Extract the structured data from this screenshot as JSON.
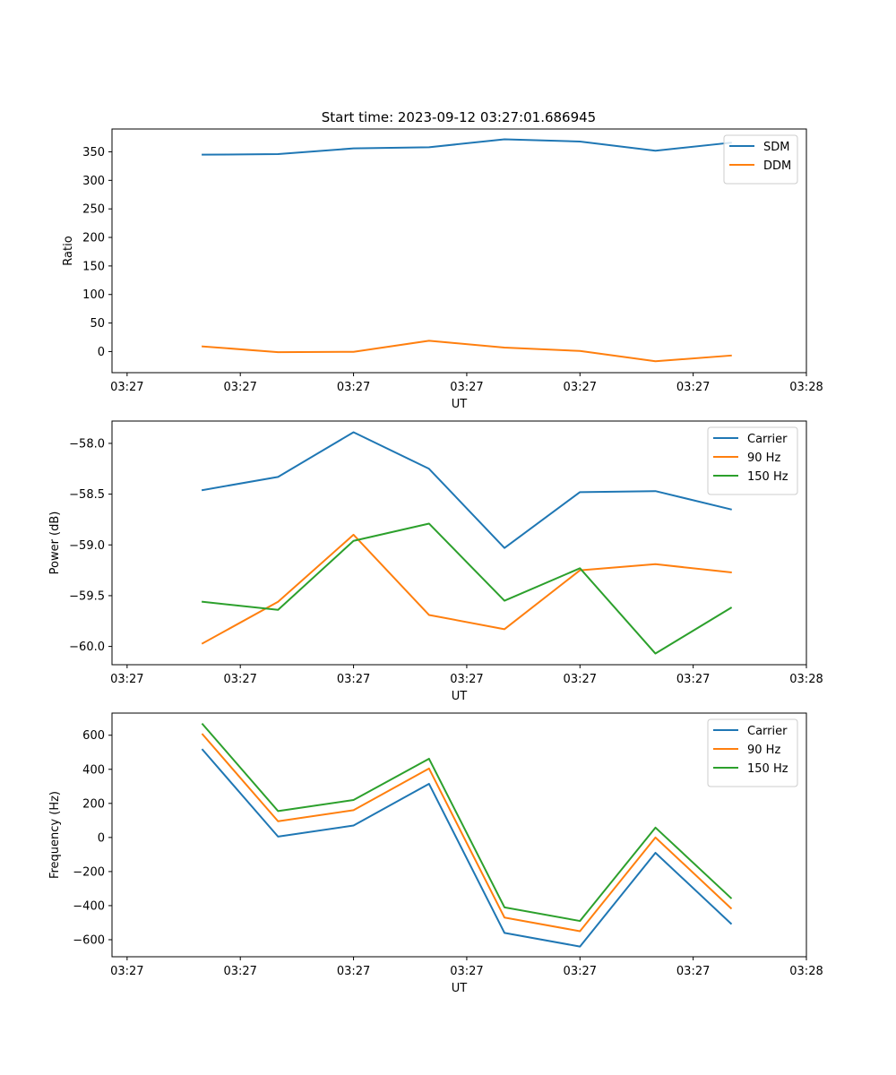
{
  "figure_title": "Start time: 2023-09-12 03:27:01.686945",
  "colors": {
    "blue": "#1f77b4",
    "orange": "#ff7f0e",
    "green": "#2ca02c"
  },
  "chart_data": [
    {
      "type": "line",
      "title": "Start time: 2023-09-12 03:27:01.686945",
      "xlabel": "UT",
      "ylabel": "Ratio",
      "x": [
        1,
        2,
        3,
        4,
        5,
        6,
        7,
        8
      ],
      "xlim": [
        -0.2,
        9.0
      ],
      "ylim": [
        -37,
        390
      ],
      "xticks": [
        {
          "v": 0,
          "label": "03:27"
        },
        {
          "v": 1.5,
          "label": "03:27"
        },
        {
          "v": 3,
          "label": "03:27"
        },
        {
          "v": 4.5,
          "label": "03:27"
        },
        {
          "v": 6,
          "label": "03:27"
        },
        {
          "v": 7.5,
          "label": "03:27"
        },
        {
          "v": 9,
          "label": "03:28"
        }
      ],
      "yticks": [
        {
          "v": 0,
          "label": "0"
        },
        {
          "v": 50,
          "label": "50"
        },
        {
          "v": 100,
          "label": "100"
        },
        {
          "v": 150,
          "label": "150"
        },
        {
          "v": 200,
          "label": "200"
        },
        {
          "v": 250,
          "label": "250"
        },
        {
          "v": 300,
          "label": "300"
        },
        {
          "v": 350,
          "label": "350"
        }
      ],
      "legend": "top-right",
      "series": [
        {
          "name": "SDM",
          "color": "#1f77b4",
          "values": [
            345,
            346,
            356,
            358,
            372,
            368,
            352,
            366
          ]
        },
        {
          "name": "DDM",
          "color": "#ff7f0e",
          "values": [
            9,
            -1,
            -0.5,
            19,
            7,
            1,
            -17,
            -7
          ]
        }
      ]
    },
    {
      "type": "line",
      "title": "",
      "xlabel": "UT",
      "ylabel": "Power (dB)",
      "x": [
        1,
        2,
        3,
        4,
        5,
        6,
        7,
        8
      ],
      "xlim": [
        -0.2,
        9.0
      ],
      "ylim": [
        -60.18,
        -57.78
      ],
      "xticks": [
        {
          "v": 0,
          "label": "03:27"
        },
        {
          "v": 1.5,
          "label": "03:27"
        },
        {
          "v": 3,
          "label": "03:27"
        },
        {
          "v": 4.5,
          "label": "03:27"
        },
        {
          "v": 6,
          "label": "03:27"
        },
        {
          "v": 7.5,
          "label": "03:27"
        },
        {
          "v": 9,
          "label": "03:28"
        }
      ],
      "yticks": [
        {
          "v": -60.0,
          "label": "−60.0"
        },
        {
          "v": -59.5,
          "label": "−59.5"
        },
        {
          "v": -59.0,
          "label": "−59.0"
        },
        {
          "v": -58.5,
          "label": "−58.5"
        },
        {
          "v": -58.0,
          "label": "−58.0"
        }
      ],
      "legend": "top-right",
      "series": [
        {
          "name": "Carrier",
          "color": "#1f77b4",
          "values": [
            -58.46,
            -58.33,
            -57.89,
            -58.25,
            -59.03,
            -58.48,
            -58.47,
            -58.65
          ]
        },
        {
          "name": "90 Hz",
          "color": "#ff7f0e",
          "values": [
            -59.97,
            -59.56,
            -58.9,
            -59.69,
            -59.83,
            -59.25,
            -59.19,
            -59.27
          ]
        },
        {
          "name": "150 Hz",
          "color": "#2ca02c",
          "values": [
            -59.56,
            -59.64,
            -58.96,
            -58.79,
            -59.55,
            -59.23,
            -60.07,
            -59.62
          ]
        }
      ]
    },
    {
      "type": "line",
      "title": "",
      "xlabel": "UT",
      "ylabel": "Frequency (Hz)",
      "x": [
        1,
        2,
        3,
        4,
        5,
        6,
        7,
        8
      ],
      "xlim": [
        -0.2,
        9.0
      ],
      "ylim": [
        -700,
        730
      ],
      "xticks": [
        {
          "v": 0,
          "label": "03:27"
        },
        {
          "v": 1.5,
          "label": "03:27"
        },
        {
          "v": 3,
          "label": "03:27"
        },
        {
          "v": 4.5,
          "label": "03:27"
        },
        {
          "v": 6,
          "label": "03:27"
        },
        {
          "v": 7.5,
          "label": "03:27"
        },
        {
          "v": 9,
          "label": "03:28"
        }
      ],
      "yticks": [
        {
          "v": -600,
          "label": "−600"
        },
        {
          "v": -400,
          "label": "−400"
        },
        {
          "v": -200,
          "label": "−200"
        },
        {
          "v": 0,
          "label": "0"
        },
        {
          "v": 200,
          "label": "200"
        },
        {
          "v": 400,
          "label": "400"
        },
        {
          "v": 600,
          "label": "600"
        }
      ],
      "legend": "top-right",
      "series": [
        {
          "name": "Carrier",
          "color": "#1f77b4",
          "values": [
            515,
            5,
            70,
            315,
            -560,
            -640,
            -90,
            -505
          ]
        },
        {
          "name": "90 Hz",
          "color": "#ff7f0e",
          "values": [
            605,
            95,
            160,
            405,
            -470,
            -550,
            0,
            -415
          ]
        },
        {
          "name": "150 Hz",
          "color": "#2ca02c",
          "values": [
            665,
            155,
            220,
            462,
            -410,
            -490,
            58,
            -355
          ]
        }
      ]
    }
  ]
}
